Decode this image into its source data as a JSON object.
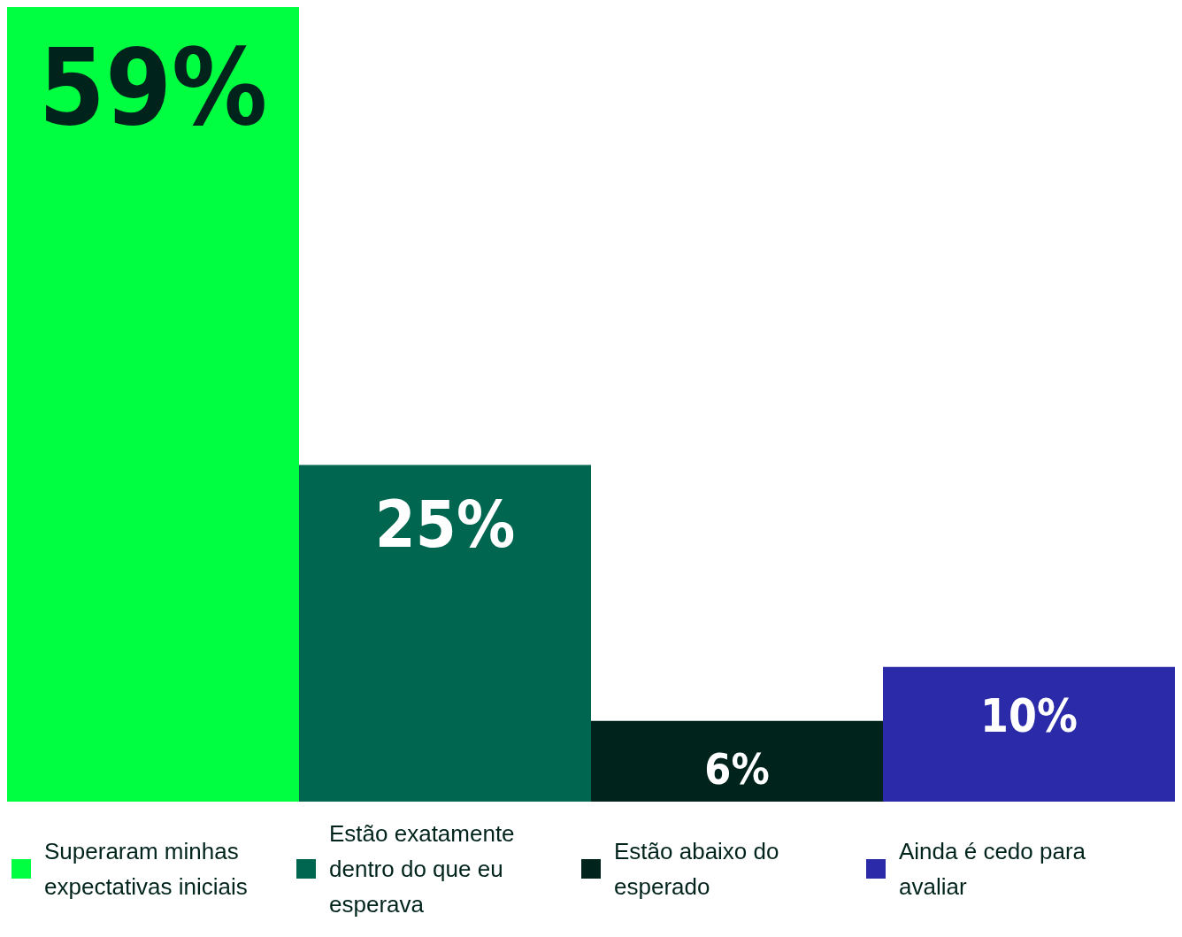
{
  "chart_data": {
    "type": "bar",
    "categories": [
      null
    ],
    "series": [
      {
        "name": "Superaram minhas expectativas iniciais",
        "color": "#00ff41",
        "values": [
          59
        ],
        "value_labels": [
          "59%"
        ]
      },
      {
        "name": "Estão exatamente dentro do que eu esperava",
        "color": "#006650",
        "values": [
          25
        ],
        "value_labels": [
          "25%"
        ]
      },
      {
        "name": "Estão abaixo do esperado",
        "color": "#00241c",
        "values": [
          6
        ],
        "value_labels": [
          "6%"
        ]
      },
      {
        "name": "Ainda é cedo para avaliar",
        "color": "#2b2aa8",
        "values": [
          10
        ],
        "value_labels": [
          "10%"
        ]
      }
    ],
    "legend": "bottom"
  }
}
